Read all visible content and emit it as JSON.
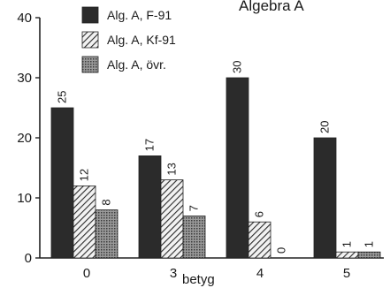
{
  "chart_data": {
    "type": "bar",
    "title": "Algebra A",
    "xlabel": "betyg",
    "ylabel": "",
    "ylim": [
      0,
      40
    ],
    "yticks": [
      0,
      10,
      20,
      30,
      40
    ],
    "categories": [
      "0",
      "3",
      "4",
      "5"
    ],
    "series": [
      {
        "name": "Alg. A, F-91",
        "values": [
          25,
          17,
          30,
          20
        ],
        "labels": [
          "25",
          "17",
          "30",
          "20"
        ],
        "color": "#2b2b2b",
        "fill": "solid"
      },
      {
        "name": "Alg. A, Kf-91",
        "values": [
          12,
          13,
          6,
          1
        ],
        "labels": [
          "12",
          "13",
          "6",
          "1"
        ],
        "color": "#333333",
        "fill": "hatch"
      },
      {
        "name": "Alg. A, övr.",
        "values": [
          8,
          7,
          0,
          1
        ],
        "labels": [
          "8",
          "7",
          "0",
          "1"
        ],
        "color": "#6a6a6a",
        "fill": "dots"
      }
    ],
    "legend": "top-left",
    "grid": false
  }
}
